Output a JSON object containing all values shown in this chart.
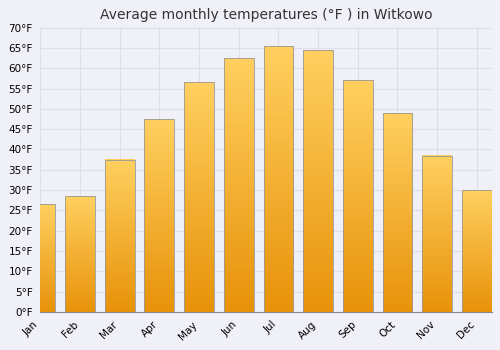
{
  "title": "Average monthly temperatures (°F ) in Witkowo",
  "months": [
    "Jan",
    "Feb",
    "Mar",
    "Apr",
    "May",
    "Jun",
    "Jul",
    "Aug",
    "Sep",
    "Oct",
    "Nov",
    "Dec"
  ],
  "values": [
    26.5,
    28.5,
    37.5,
    47.5,
    56.5,
    62.5,
    65.5,
    64.5,
    57.0,
    49.0,
    38.5,
    30.0
  ],
  "bar_color_bottom": "#F5A623",
  "bar_color_top": "#FFD050",
  "bar_edge_color": "#999999",
  "ylim": [
    0,
    70
  ],
  "yticks": [
    0,
    5,
    10,
    15,
    20,
    25,
    30,
    35,
    40,
    45,
    50,
    55,
    60,
    65,
    70
  ],
  "background_color": "#F0F0F8",
  "plot_bg_color": "#F0F0F8",
  "grid_color": "#DDDDEE",
  "title_fontsize": 10,
  "tick_fontsize": 7.5,
  "font_family": "DejaVu Sans"
}
